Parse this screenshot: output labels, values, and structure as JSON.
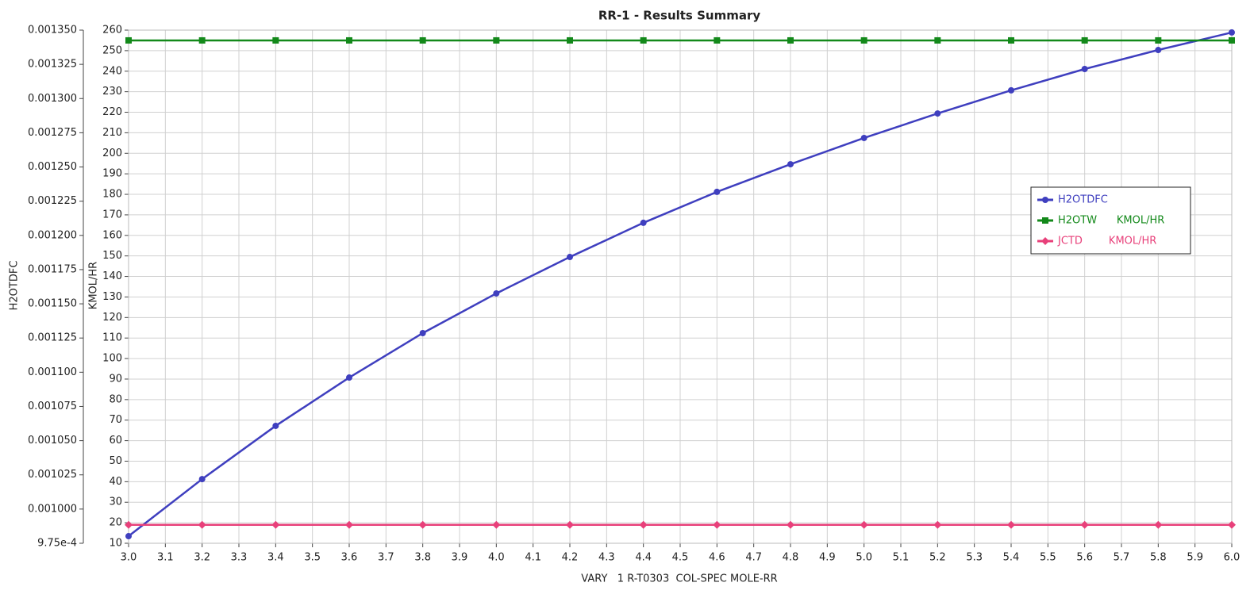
{
  "chart_data": {
    "type": "line",
    "title": "RR-1 - Results Summary",
    "x_label": "VARY   1 R-T0303  COL-SPEC MOLE-RR",
    "y_label": "H2OTDFC",
    "y2_label": "KMOL/HR",
    "x": [
      3.0,
      3.2,
      3.4,
      3.6,
      3.8,
      4.0,
      4.2,
      4.4,
      4.6,
      4.8,
      5.0,
      5.2,
      5.4,
      5.6,
      5.8,
      6.0
    ],
    "series": [
      {
        "name": "H2OTDFC",
        "color": "#3f3fbf",
        "marker": "circle",
        "values": [
          0.0009802,
          0.0010219,
          0.0010608,
          0.0010961,
          0.0011286,
          0.0011576,
          0.0011842,
          0.0012092,
          0.0012318,
          0.001252,
          0.0012712,
          0.0012891,
          0.001306,
          0.0013216,
          0.0013355,
          0.0013483
        ]
      },
      {
        "name": "H2OTW      KMOL/HR",
        "color": "#13891a",
        "marker": "square",
        "axis": "y2",
        "values": [
          255,
          255,
          255,
          255,
          255,
          255,
          255,
          255,
          255,
          255,
          255,
          255,
          255,
          255,
          255,
          255
        ]
      },
      {
        "name": "JCTD        KMOL/HR",
        "color": "#e8407a",
        "marker": "diamond",
        "axis": "y2",
        "values": [
          19,
          19,
          19,
          19,
          19,
          19,
          19,
          19,
          19,
          19,
          19,
          19,
          19,
          19,
          19,
          19
        ]
      }
    ],
    "xlim": [
      3.0,
      6.0
    ],
    "xticks": [
      {
        "value": 3,
        "label": "3.0"
      },
      3.1,
      3.2,
      3.3,
      3.4,
      3.5,
      3.6,
      3.7,
      3.8,
      3.9,
      {
        "value": 4,
        "label": "4.0"
      },
      4.1,
      4.2,
      4.3,
      4.4,
      4.5,
      4.6,
      4.7,
      4.8,
      4.9,
      {
        "value": 5,
        "label": "5.0"
      },
      5.1,
      5.2,
      5.3,
      5.4,
      5.5,
      5.6,
      5.7,
      5.8,
      5.9,
      {
        "value": 6,
        "label": "6.0"
      }
    ],
    "ylim": [
      0.000975,
      0.00135
    ],
    "yticks": [
      {
        "value": 0.000975,
        "label": "9.75e-4"
      },
      {
        "value": 0.001,
        "label": "0.001000"
      },
      0.001025,
      {
        "value": 0.00105,
        "label": "0.001050"
      },
      0.001075,
      {
        "value": 0.0011,
        "label": "0.001100"
      },
      0.001125,
      {
        "value": 0.00115,
        "label": "0.001150"
      },
      0.001175,
      {
        "value": 0.0012,
        "label": "0.001200"
      },
      0.001225,
      {
        "value": 0.00125,
        "label": "0.001250"
      },
      0.001275,
      {
        "value": 0.0013,
        "label": "0.001300"
      },
      0.001325,
      {
        "value": 0.00135,
        "label": "0.001350"
      }
    ],
    "y2lim": [
      10,
      260
    ],
    "y2ticks": [
      10,
      20,
      30,
      40,
      50,
      60,
      70,
      80,
      90,
      100,
      110,
      120,
      130,
      140,
      150,
      160,
      170,
      180,
      190,
      200,
      210,
      220,
      230,
      240,
      250,
      260
    ],
    "grid": true,
    "legend": "right"
  }
}
